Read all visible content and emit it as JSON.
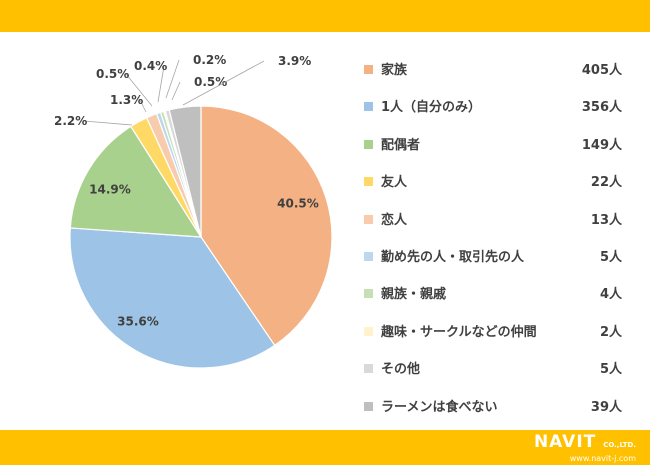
{
  "chart_data": {
    "type": "pie",
    "title": "",
    "categories": [
      "家族",
      "1人（自分のみ）",
      "配偶者",
      "友人",
      "恋人",
      "勤め先の人・取引先の人",
      "親族・親戚",
      "趣味・サークルなどの仲間",
      "その他",
      "ラーメンは食べない"
    ],
    "values": [
      405,
      356,
      149,
      22,
      13,
      5,
      4,
      2,
      5,
      39
    ],
    "counts": [
      "405人",
      "356人",
      "149人",
      "22人",
      "13人",
      "5人",
      "4人",
      "2人",
      "5人",
      "39人"
    ],
    "percent_labels": [
      "40.5%",
      "35.6%",
      "14.9%",
      "2.2%",
      "1.3%",
      "0.5%",
      "0.4%",
      "0.2%",
      "0.5%",
      "3.9%"
    ],
    "colors": [
      "#f4b183",
      "#9dc3e6",
      "#a9d18e",
      "#ffd966",
      "#f8cbad",
      "#bdd7ee",
      "#c5e0b4",
      "#fff2cc",
      "#d9d9d9",
      "#bfbfbf"
    ],
    "legend_position": "right"
  },
  "logo": {
    "name": "NAVIT",
    "suffix": "CO.,LTD.",
    "url": "www.navit-j.com"
  }
}
